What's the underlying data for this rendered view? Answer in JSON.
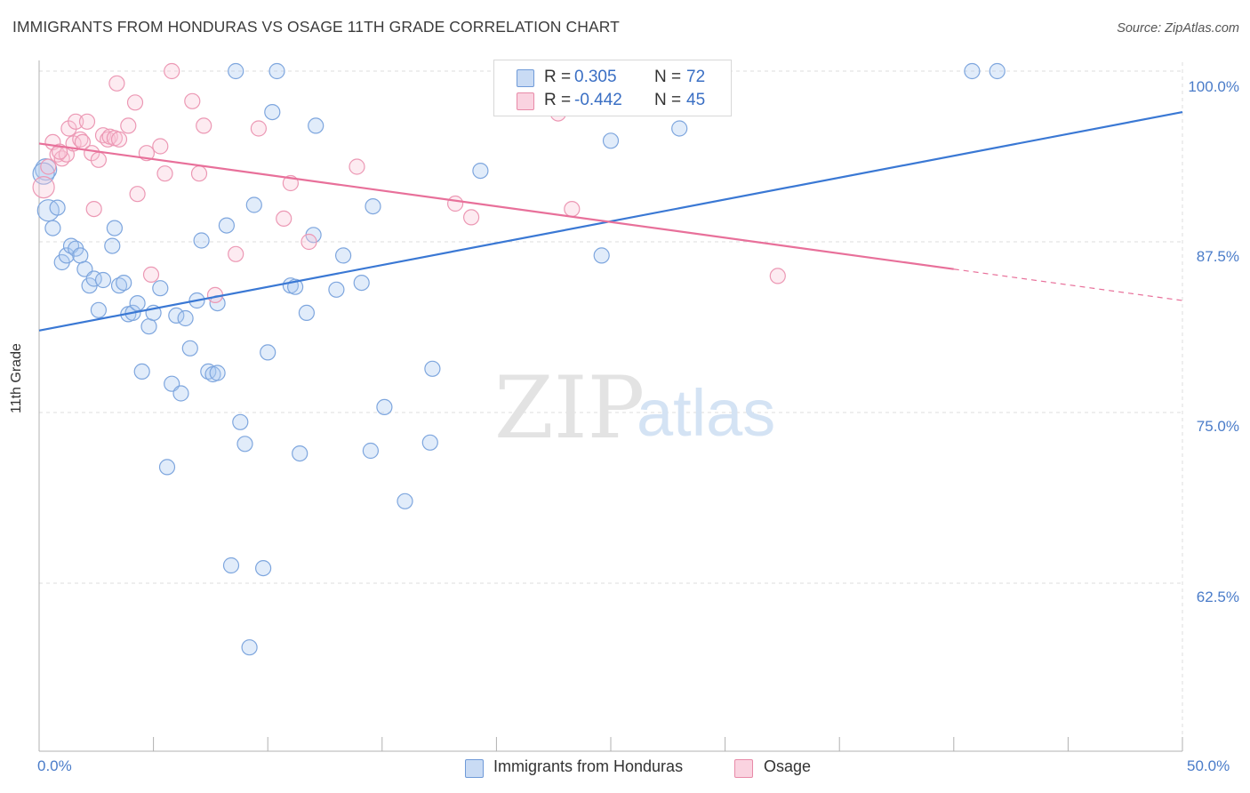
{
  "title": "IMMIGRANTS FROM HONDURAS VS OSAGE 11TH GRADE CORRELATION CHART",
  "source": "Source: ZipAtlas.com",
  "watermark": {
    "zip": "ZIP",
    "atlas": "atlas"
  },
  "legend": {
    "rows": [
      {
        "r_label": "R =",
        "r_value": "0.305",
        "n_label": "N =",
        "n_value": "72",
        "color": "#aac8f0",
        "border": "#6f9ad8"
      },
      {
        "r_label": "R =",
        "r_value": "-0.442",
        "n_label": "N =",
        "n_value": "45",
        "color": "#f8c6d6",
        "border": "#e88aa8"
      }
    ]
  },
  "bottom_legend": {
    "items": [
      {
        "label": "Immigrants from Honduras",
        "color": "#aac8f0",
        "border": "#6f9ad8"
      },
      {
        "label": "Osage",
        "color": "#f8c6d6",
        "border": "#e88aa8"
      }
    ]
  },
  "chart_data": {
    "type": "scatter",
    "title": "IMMIGRANTS FROM HONDURAS VS OSAGE 11TH GRADE CORRELATION CHART",
    "xlabel": "",
    "ylabel": "11th Grade",
    "xlim": [
      0,
      50
    ],
    "ylim": [
      50,
      100
    ],
    "x_tick_labels": [
      "0.0%",
      "50.0%"
    ],
    "y_tick_labels": [
      "100.0%",
      "87.5%",
      "75.0%",
      "62.5%"
    ],
    "y_tick_values": [
      100,
      87.5,
      75,
      62.5
    ],
    "grid": true,
    "colors": {
      "blue": "#3a78d4",
      "pink": "#e8709a"
    },
    "series": [
      {
        "name": "Immigrants from Honduras",
        "color": "#3a78d4",
        "points": [
          [
            0.3,
            92.8
          ],
          [
            0.4,
            89.8
          ],
          [
            0.6,
            88.5
          ],
          [
            0.8,
            90.0
          ],
          [
            1.0,
            86.0
          ],
          [
            1.2,
            86.5
          ],
          [
            1.4,
            87.2
          ],
          [
            1.6,
            87.0
          ],
          [
            1.8,
            86.5
          ],
          [
            2.0,
            85.5
          ],
          [
            2.2,
            84.3
          ],
          [
            2.4,
            84.8
          ],
          [
            2.6,
            82.5
          ],
          [
            2.8,
            84.7
          ],
          [
            3.2,
            87.2
          ],
          [
            3.3,
            88.5
          ],
          [
            3.5,
            84.3
          ],
          [
            3.7,
            84.5
          ],
          [
            3.9,
            82.2
          ],
          [
            4.1,
            82.3
          ],
          [
            4.3,
            83.0
          ],
          [
            4.5,
            78.0
          ],
          [
            4.8,
            81.3
          ],
          [
            5.0,
            82.3
          ],
          [
            5.3,
            84.1
          ],
          [
            5.6,
            71.0
          ],
          [
            5.8,
            77.1
          ],
          [
            6.0,
            82.1
          ],
          [
            6.2,
            76.4
          ],
          [
            6.4,
            81.9
          ],
          [
            6.6,
            79.7
          ],
          [
            6.9,
            83.2
          ],
          [
            7.1,
            87.6
          ],
          [
            7.4,
            78.0
          ],
          [
            7.6,
            77.8
          ],
          [
            7.8,
            77.9
          ],
          [
            7.8,
            83.0
          ],
          [
            8.2,
            88.7
          ],
          [
            8.4,
            63.8
          ],
          [
            8.6,
            100.0
          ],
          [
            8.8,
            74.3
          ],
          [
            9.0,
            72.7
          ],
          [
            9.2,
            57.8
          ],
          [
            9.4,
            90.2
          ],
          [
            9.8,
            63.6
          ],
          [
            10.0,
            79.4
          ],
          [
            10.2,
            97.0
          ],
          [
            10.4,
            100.0
          ],
          [
            11.0,
            84.3
          ],
          [
            11.2,
            84.2
          ],
          [
            11.4,
            72.0
          ],
          [
            11.7,
            82.3
          ],
          [
            12.0,
            88.0
          ],
          [
            12.1,
            96.0
          ],
          [
            13.0,
            84.0
          ],
          [
            13.3,
            86.5
          ],
          [
            14.1,
            84.5
          ],
          [
            14.5,
            72.2
          ],
          [
            14.6,
            90.1
          ],
          [
            15.1,
            75.4
          ],
          [
            16.0,
            68.5
          ],
          [
            17.1,
            72.8
          ],
          [
            17.2,
            78.2
          ],
          [
            19.3,
            92.7
          ],
          [
            24.4,
            100.0
          ],
          [
            24.6,
            86.5
          ],
          [
            25.0,
            94.9
          ],
          [
            28.0,
            95.8
          ],
          [
            28.6,
            100.0
          ],
          [
            40.8,
            100.0
          ],
          [
            41.9,
            100.0
          ],
          [
            0.2,
            92.5
          ]
        ],
        "trend": {
          "x": [
            0,
            50
          ],
          "y": [
            81.0,
            97.0
          ]
        }
      },
      {
        "name": "Osage",
        "color": "#e8709a",
        "points": [
          [
            0.2,
            91.5
          ],
          [
            0.4,
            93.0
          ],
          [
            0.6,
            94.8
          ],
          [
            0.8,
            93.9
          ],
          [
            1.0,
            93.6
          ],
          [
            1.2,
            93.9
          ],
          [
            1.3,
            95.8
          ],
          [
            1.5,
            94.7
          ],
          [
            1.6,
            96.3
          ],
          [
            1.8,
            95.0
          ],
          [
            1.9,
            94.8
          ],
          [
            2.1,
            96.3
          ],
          [
            2.3,
            94.0
          ],
          [
            2.4,
            89.9
          ],
          [
            2.6,
            93.5
          ],
          [
            2.8,
            95.3
          ],
          [
            3.0,
            95.0
          ],
          [
            3.1,
            95.2
          ],
          [
            3.3,
            95.1
          ],
          [
            3.4,
            99.1
          ],
          [
            3.5,
            95.0
          ],
          [
            3.9,
            96.0
          ],
          [
            4.2,
            97.7
          ],
          [
            4.3,
            91.0
          ],
          [
            4.7,
            94.0
          ],
          [
            4.9,
            85.1
          ],
          [
            5.3,
            94.5
          ],
          [
            5.5,
            92.5
          ],
          [
            5.8,
            100.0
          ],
          [
            6.7,
            97.8
          ],
          [
            7.0,
            92.5
          ],
          [
            7.2,
            96.0
          ],
          [
            7.7,
            83.6
          ],
          [
            8.6,
            86.6
          ],
          [
            9.6,
            95.8
          ],
          [
            10.7,
            89.2
          ],
          [
            11.0,
            91.8
          ],
          [
            11.8,
            87.5
          ],
          [
            13.9,
            93.0
          ],
          [
            18.2,
            90.3
          ],
          [
            18.9,
            89.3
          ],
          [
            22.7,
            96.9
          ],
          [
            23.3,
            89.9
          ],
          [
            32.3,
            85.0
          ],
          [
            0.9,
            94.1
          ]
        ],
        "trend": {
          "x": [
            0,
            40
          ],
          "y": [
            94.7,
            85.5
          ]
        },
        "trend_dashed": {
          "x": [
            40,
            50
          ],
          "y": [
            85.5,
            83.2
          ]
        }
      }
    ]
  }
}
